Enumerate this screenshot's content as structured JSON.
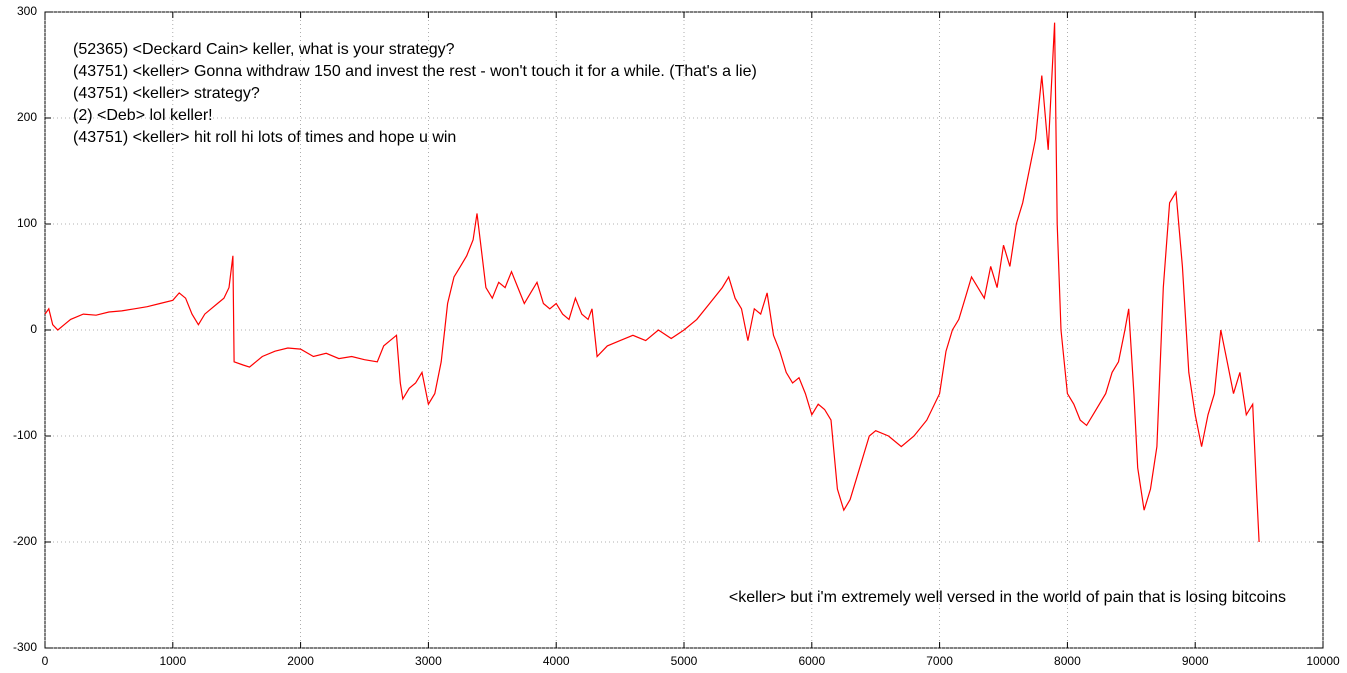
{
  "chart_data": {
    "type": "line",
    "annotations": [
      "(52365) <Deckard Cain> keller, what is your strategy?",
      "(43751) <keller> Gonna withdraw 150 and invest the rest - won't touch it for a while. (That's a lie)",
      "(43751) <keller> strategy?",
      "(2) <Deb> lol keller!",
      "(43751) <keller> hit roll hi lots of times and hope u win",
      "<keller> but i'm extremely well versed in the world of pain that is losing bitcoins"
    ],
    "x": [
      0,
      30,
      60,
      100,
      150,
      200,
      300,
      400,
      500,
      600,
      700,
      800,
      900,
      1000,
      1050,
      1100,
      1150,
      1200,
      1250,
      1300,
      1350,
      1400,
      1440,
      1470,
      1480,
      1550,
      1600,
      1700,
      1800,
      1900,
      2000,
      2100,
      2200,
      2300,
      2400,
      2500,
      2600,
      2650,
      2700,
      2750,
      2780,
      2800,
      2850,
      2900,
      2950,
      3000,
      3050,
      3100,
      3150,
      3200,
      3250,
      3300,
      3350,
      3380,
      3420,
      3450,
      3500,
      3550,
      3600,
      3650,
      3700,
      3750,
      3800,
      3850,
      3900,
      3950,
      4000,
      4050,
      4100,
      4150,
      4200,
      4250,
      4280,
      4320,
      4400,
      4500,
      4600,
      4700,
      4800,
      4900,
      5000,
      5100,
      5200,
      5300,
      5350,
      5400,
      5450,
      5500,
      5550,
      5600,
      5650,
      5700,
      5750,
      5800,
      5850,
      5900,
      5950,
      6000,
      6050,
      6100,
      6150,
      6200,
      6250,
      6300,
      6350,
      6400,
      6450,
      6500,
      6600,
      6700,
      6800,
      6900,
      7000,
      7050,
      7100,
      7150,
      7200,
      7250,
      7300,
      7350,
      7400,
      7450,
      7500,
      7550,
      7600,
      7650,
      7700,
      7750,
      7800,
      7850,
      7900,
      7920,
      7950,
      8000,
      8050,
      8100,
      8150,
      8200,
      8300,
      8350,
      8400,
      8450,
      8480,
      8520,
      8550,
      8600,
      8650,
      8700,
      8750,
      8800,
      8850,
      8900,
      8950,
      9000,
      9050,
      9100,
      9150,
      9200,
      9250,
      9300,
      9350,
      9400,
      9450,
      9480,
      9500
    ],
    "series": [
      {
        "color": "#ff0000",
        "values": [
          15,
          20,
          5,
          0,
          5,
          10,
          15,
          14,
          17,
          18,
          20,
          22,
          25,
          28,
          35,
          30,
          15,
          5,
          15,
          20,
          25,
          30,
          40,
          70,
          -30,
          -33,
          -35,
          -25,
          -20,
          -17,
          -18,
          -25,
          -22,
          -27,
          -25,
          -28,
          -30,
          -15,
          -10,
          -5,
          -50,
          -65,
          -55,
          -50,
          -40,
          -70,
          -60,
          -30,
          25,
          50,
          60,
          70,
          85,
          110,
          70,
          40,
          30,
          45,
          40,
          55,
          40,
          25,
          35,
          45,
          25,
          20,
          25,
          15,
          10,
          30,
          15,
          10,
          20,
          -25,
          -15,
          -10,
          -5,
          -10,
          0,
          -8,
          0,
          10,
          25,
          40,
          50,
          30,
          20,
          -10,
          20,
          15,
          35,
          -5,
          -20,
          -40,
          -50,
          -45,
          -60,
          -80,
          -70,
          -75,
          -85,
          -150,
          -170,
          -160,
          -140,
          -120,
          -100,
          -95,
          -100,
          -110,
          -100,
          -85,
          -60,
          -20,
          0,
          10,
          30,
          50,
          40,
          30,
          60,
          40,
          80,
          60,
          100,
          120,
          150,
          180,
          240,
          170,
          290,
          100,
          0,
          -60,
          -70,
          -85,
          -90,
          -80,
          -60,
          -40,
          -30,
          0,
          20,
          -60,
          -130,
          -170,
          -150,
          -110,
          40,
          120,
          130,
          60,
          -40,
          -80,
          -110,
          -80,
          -60,
          0,
          -30,
          -60,
          -40,
          -80,
          -70,
          -150,
          -200
        ]
      }
    ],
    "xlim": [
      0,
      10000
    ],
    "ylim": [
      -300,
      300
    ],
    "xticks": [
      0,
      1000,
      2000,
      3000,
      4000,
      5000,
      6000,
      7000,
      8000,
      9000,
      10000
    ],
    "yticks": [
      -300,
      -200,
      -100,
      0,
      100,
      200,
      300
    ],
    "grid": true
  }
}
